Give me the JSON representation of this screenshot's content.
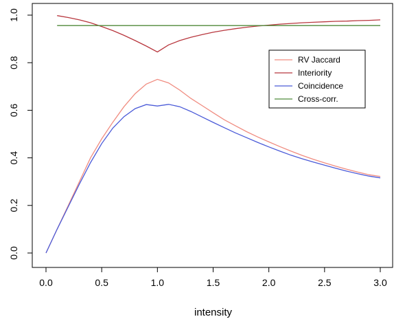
{
  "chart_data": {
    "type": "line",
    "title": "",
    "xlabel": "intensity",
    "ylabel": "",
    "xlim": [
      0,
      3
    ],
    "ylim": [
      0,
      1
    ],
    "x_ticks": [
      0.0,
      0.5,
      1.0,
      1.5,
      2.0,
      2.5,
      3.0
    ],
    "x_tick_labels": [
      "0.0",
      "0.5",
      "1.0",
      "1.5",
      "2.0",
      "2.5",
      "3.0"
    ],
    "y_ticks": [
      0.0,
      0.2,
      0.4,
      0.6,
      0.8,
      1.0
    ],
    "y_tick_labels": [
      "0.0",
      "0.2",
      "0.4",
      "0.6",
      "0.8",
      "1.0"
    ],
    "grid": false,
    "legend_position": "right",
    "series": [
      {
        "name": "RV Jaccard",
        "color": "#f08c80",
        "x": [
          0,
          0.1,
          0.2,
          0.3,
          0.4,
          0.5,
          0.6,
          0.7,
          0.8,
          0.9,
          1.0,
          1.1,
          1.2,
          1.3,
          1.4,
          1.5,
          1.6,
          1.7,
          1.8,
          1.9,
          2.0,
          2.1,
          2.2,
          2.3,
          2.4,
          2.5,
          2.6,
          2.7,
          2.8,
          2.9,
          3.0
        ],
        "y": [
          0.0,
          0.1,
          0.2,
          0.3,
          0.4,
          0.48,
          0.55,
          0.615,
          0.67,
          0.71,
          0.73,
          0.715,
          0.685,
          0.65,
          0.62,
          0.59,
          0.56,
          0.535,
          0.51,
          0.488,
          0.467,
          0.447,
          0.428,
          0.41,
          0.394,
          0.379,
          0.365,
          0.352,
          0.34,
          0.329,
          0.322
        ]
      },
      {
        "name": "Interiority",
        "color": "#b8373e",
        "x": [
          0.1,
          0.2,
          0.3,
          0.4,
          0.5,
          0.6,
          0.7,
          0.8,
          0.9,
          1.0,
          1.1,
          1.2,
          1.3,
          1.4,
          1.5,
          1.6,
          1.7,
          1.8,
          1.9,
          2.0,
          2.1,
          2.2,
          2.3,
          2.4,
          2.5,
          2.6,
          2.7,
          2.8,
          2.9,
          3.0
        ],
        "y": [
          0.998,
          0.99,
          0.98,
          0.968,
          0.952,
          0.935,
          0.915,
          0.893,
          0.87,
          0.845,
          0.875,
          0.893,
          0.907,
          0.918,
          0.928,
          0.936,
          0.943,
          0.949,
          0.954,
          0.958,
          0.962,
          0.965,
          0.968,
          0.97,
          0.972,
          0.974,
          0.975,
          0.977,
          0.978,
          0.98
        ]
      },
      {
        "name": "Coincidence",
        "color": "#4a5ad8",
        "x": [
          0,
          0.1,
          0.2,
          0.3,
          0.4,
          0.5,
          0.6,
          0.7,
          0.8,
          0.9,
          1.0,
          1.1,
          1.2,
          1.3,
          1.4,
          1.5,
          1.6,
          1.7,
          1.8,
          1.9,
          2.0,
          2.1,
          2.2,
          2.3,
          2.4,
          2.5,
          2.6,
          2.7,
          2.8,
          2.9,
          3.0
        ],
        "y": [
          0.0,
          0.1,
          0.195,
          0.29,
          0.38,
          0.46,
          0.525,
          0.573,
          0.607,
          0.624,
          0.618,
          0.625,
          0.615,
          0.595,
          0.572,
          0.549,
          0.527,
          0.505,
          0.485,
          0.465,
          0.446,
          0.428,
          0.411,
          0.396,
          0.382,
          0.369,
          0.356,
          0.344,
          0.333,
          0.323,
          0.316
        ]
      },
      {
        "name": "Cross-corr.",
        "color": "#4f8a3a",
        "x": [
          0.1,
          3.0
        ],
        "y": [
          0.956,
          0.956
        ]
      }
    ]
  }
}
